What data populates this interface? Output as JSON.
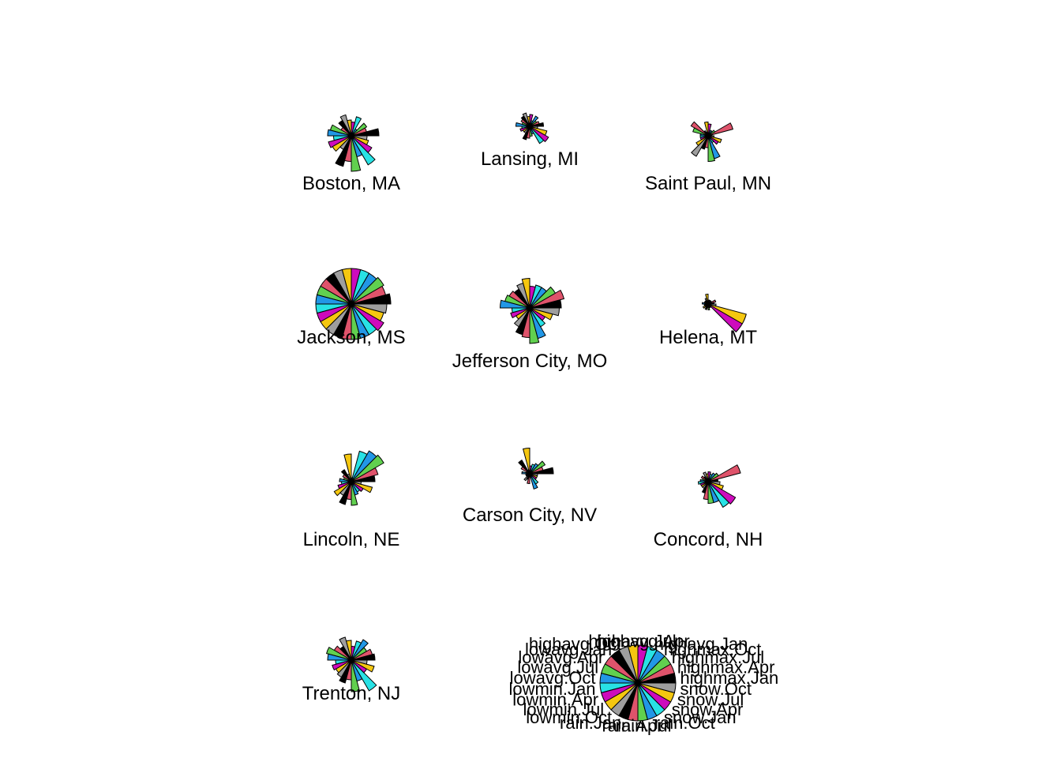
{
  "chart_data": {
    "type": "star-segment",
    "variables": [
      "highmax.Jan",
      "highmax.Apr",
      "highmax.Jul",
      "highmax.Oct",
      "highavg.Jan",
      "highavg.Apr",
      "highavg.Jul",
      "highavg.Oct",
      "lowavg.Jan",
      "lowavg.Apr",
      "lowavg.Jul",
      "lowavg.Oct",
      "lowmin.Jan",
      "lowmin.Apr",
      "lowmin.Jul",
      "lowmin.Oct",
      "rain.Jan",
      "rain.Apr",
      "rain.Jul",
      "rain.Oct",
      "snow.Jan",
      "snow.Apr",
      "snow.Jul",
      "snow.Oct"
    ],
    "palette": [
      "#000000",
      "#DF536B",
      "#61D04F",
      "#2297E6",
      "#28E2E5",
      "#CD0BBC",
      "#F5C710",
      "#9E9E9E"
    ],
    "stars": [
      {
        "name": "Boston, MA",
        "values": [
          0.7,
          0.4,
          0.45,
          0.2,
          0.5,
          0.35,
          0.4,
          0.55,
          0.45,
          0.3,
          0.55,
          0.6,
          0.45,
          0.6,
          0.55,
          0.4,
          0.8,
          0.65,
          0.9,
          0.55,
          0.85,
          0.6,
          0.45,
          0.4
        ]
      },
      {
        "name": "Lansing, MI",
        "values": [
          0.35,
          0.25,
          0.2,
          0.3,
          0.15,
          0.3,
          0.25,
          0.35,
          0.3,
          0.25,
          0.2,
          0.35,
          0.2,
          0.25,
          0.2,
          0.2,
          0.35,
          0.3,
          0.25,
          0.2,
          0.5,
          0.55,
          0.45,
          0.2
        ]
      },
      {
        "name": "Saint Paul, MN",
        "values": [
          0.1,
          0.65,
          0.2,
          0.15,
          0.15,
          0.3,
          0.35,
          0.1,
          0.15,
          0.5,
          0.4,
          0.2,
          0.2,
          0.2,
          0.35,
          0.6,
          0.35,
          0.3,
          0.65,
          0.6,
          0.2,
          0.3,
          0.35,
          0.15
        ]
      },
      {
        "name": "Jackson, MS",
        "values": [
          1.0,
          0.9,
          0.95,
          0.9,
          0.9,
          0.9,
          0.9,
          0.9,
          0.9,
          0.9,
          0.9,
          0.9,
          0.9,
          0.9,
          0.9,
          0.9,
          0.9,
          0.9,
          0.9,
          0.9,
          0.9,
          0.95,
          0.85,
          0.9
        ]
      },
      {
        "name": "Jefferson City, MO",
        "values": [
          0.8,
          0.9,
          0.75,
          0.6,
          0.6,
          0.55,
          0.75,
          0.65,
          0.55,
          0.6,
          0.65,
          0.75,
          0.45,
          0.5,
          0.4,
          0.55,
          0.7,
          0.75,
          0.9,
          0.8,
          0.55,
          0.45,
          0.6,
          0.75
        ]
      },
      {
        "name": "Helena, MT",
        "values": [
          0.15,
          0.2,
          0.1,
          0.1,
          0.1,
          0.1,
          0.25,
          0.15,
          0.1,
          0.1,
          0.1,
          0.15,
          0.1,
          0.1,
          0.15,
          0.1,
          0.15,
          0.1,
          0.15,
          0.1,
          0.1,
          1.0,
          1.0,
          0.2
        ]
      },
      {
        "name": "Lincoln, NE",
        "values": [
          0.6,
          0.7,
          0.95,
          0.9,
          0.8,
          0.1,
          0.7,
          0.2,
          0.35,
          0.25,
          0.2,
          0.3,
          0.25,
          0.35,
          0.5,
          0.4,
          0.6,
          0.45,
          0.6,
          0.35,
          0.3,
          0.35,
          0.55,
          0.25
        ]
      },
      {
        "name": "Carson City, NV",
        "values": [
          0.6,
          0.35,
          0.45,
          0.3,
          0.25,
          0.2,
          0.65,
          0.1,
          0.4,
          0.25,
          0.1,
          0.2,
          0.1,
          0.1,
          0.1,
          0.2,
          0.15,
          0.25,
          0.1,
          0.4,
          0.3,
          0.2,
          0.2,
          0.2
        ]
      },
      {
        "name": "Concord, NH",
        "values": [
          0.25,
          0.85,
          0.3,
          0.25,
          0.2,
          0.25,
          0.2,
          0.25,
          0.15,
          0.2,
          0.15,
          0.2,
          0.25,
          0.2,
          0.2,
          0.2,
          0.3,
          0.45,
          0.55,
          0.55,
          0.75,
          0.8,
          0.4,
          0.3
        ]
      },
      {
        "name": "Trenton, NJ",
        "values": [
          0.6,
          0.55,
          0.45,
          0.6,
          0.5,
          0.35,
          0.5,
          0.6,
          0.4,
          0.5,
          0.65,
          0.6,
          0.4,
          0.5,
          0.45,
          0.5,
          0.6,
          0.5,
          0.8,
          0.55,
          0.9,
          0.45,
          0.6,
          0.4
        ]
      }
    ]
  }
}
